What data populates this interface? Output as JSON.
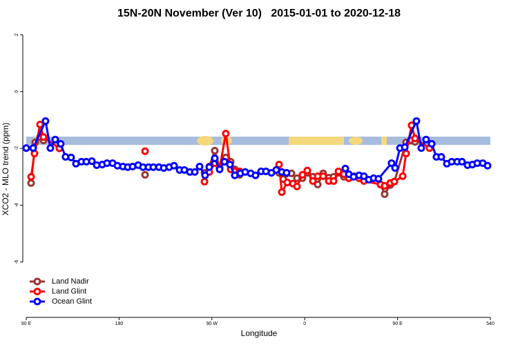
{
  "chart_data": {
    "type": "line",
    "title": "15N-20N November (Ver 10)   2015-01-01 to 2020-12-18",
    "xlabel": "Longitude",
    "ylabel": "XCO2 - MLO trend (ppm)",
    "xlim": [
      90,
      540
    ],
    "ylim": [
      -7.95,
      2.3
    ],
    "xticks": [
      {
        "value": 90,
        "label": "90 E"
      },
      180,
      {
        "value": 270,
        "label": "90 W"
      },
      {
        "value": 360,
        "label": "0"
      },
      {
        "value": 450,
        "label": "90 E"
      },
      540
    ],
    "yticks": [
      2,
      0,
      -2,
      -4,
      -6
    ],
    "legend": "bottom-left",
    "series": [
      {
        "name": "Land Nadir",
        "color": "#993333",
        "x": [
          94.7,
          98.7,
          103.4,
          106.7,
          205.2,
          262.8,
          267.5,
          272.8,
          277.5,
          283.5,
          288.2,
          292.2,
          296.9,
          335.1,
          339.1,
          347.1,
          352.5,
          357.8,
          362.5,
          367.9,
          372.6,
          377.9,
          383.3,
          388,
          393.3,
          398,
          402.7,
          408,
          412.7,
          433.5,
          437.5,
          442.9,
          446.9,
          458.3,
          463.6,
          467
        ],
        "values": [
          -3.22,
          -1.79,
          -1.6,
          -1.72,
          -2.93,
          -2.86,
          -2.64,
          -2.08,
          -2.69,
          -2.32,
          -2.47,
          -2.74,
          -2.93,
          -2.86,
          -3.08,
          -2.88,
          -3.05,
          -3.05,
          -2.86,
          -3.0,
          -3.27,
          -2.88,
          -3.03,
          -3.0,
          -2.86,
          -3.0,
          -3.05,
          -2.98,
          -3.03,
          -3.27,
          -3.61,
          -3.29,
          -3.17,
          -1.79,
          -1.72,
          -1.77
        ]
      },
      {
        "name": "Land Glint",
        "color": "#ff0000",
        "x": [
          94.7,
          98,
          103.4,
          106.7,
          122.1,
          205.2,
          262.8,
          267.5,
          272.8,
          277.5,
          283.5,
          288.2,
          292.2,
          296.9,
          335.1,
          337.8,
          343.1,
          348.5,
          352.5,
          357.8,
          362.5,
          367.9,
          372.6,
          377.9,
          383.3,
          388,
          392.7,
          398,
          402.7,
          407.4,
          412.7,
          417.4,
          433.5,
          437.5,
          442.9,
          446.9,
          455,
          458.3,
          463.6,
          467,
          481
        ],
        "values": [
          -3.0,
          -2.18,
          -1.16,
          -1.6,
          -2.0,
          -2.1,
          -3.17,
          -2.83,
          -2.52,
          -2.69,
          -1.48,
          -2.74,
          -2.81,
          -2.81,
          -2.57,
          -3.54,
          -3.2,
          -3.24,
          -3.34,
          -2.93,
          -2.78,
          -3.15,
          -2.98,
          -2.98,
          -3.15,
          -3.15,
          -2.81,
          -2.91,
          -3.05,
          -3.0,
          -3.05,
          -3.15,
          -3.27,
          -3.32,
          -3.22,
          -3.17,
          -2.98,
          -2.18,
          -1.19,
          -1.65,
          -1.99
        ]
      },
      {
        "name": "Ocean Glint",
        "color": "#0000ff",
        "x": [
          90,
          96.7,
          108.7,
          113.4,
          118.1,
          123.4,
          128.1,
          133.5,
          138.2,
          143.5,
          148.3,
          153.6,
          158.3,
          163.7,
          168.3,
          173.7,
          178.4,
          183.7,
          188.4,
          193.1,
          198.5,
          203.2,
          208.5,
          213.2,
          218.6,
          223.3,
          228.6,
          233.3,
          238.7,
          243.3,
          248.7,
          253.4,
          258.1,
          263.4,
          267.5,
          272.8,
          277.5,
          282.2,
          287.5,
          292.2,
          297.6,
          302.3,
          307.6,
          312.3,
          317.7,
          322.4,
          327.7,
          332.4,
          337.8,
          342.4,
          399.4,
          402.7,
          407.4,
          412.7,
          417.4,
          422.1,
          426.8,
          431.5,
          444.2,
          447.6,
          452.3,
          457,
          468.3,
          473,
          477.7,
          483.1,
          487.7,
          492.4,
          497.8,
          502.5,
          507.8,
          512.5,
          517.9,
          522.6,
          527.3,
          532.6,
          537.3
        ],
        "values": [
          -1.99,
          -1.99,
          -1.04,
          -1.99,
          -1.69,
          -1.84,
          -2.3,
          -2.32,
          -2.54,
          -2.47,
          -2.47,
          -2.45,
          -2.59,
          -2.57,
          -2.52,
          -2.52,
          -2.61,
          -2.64,
          -2.66,
          -2.64,
          -2.59,
          -2.66,
          -2.66,
          -2.66,
          -2.66,
          -2.69,
          -2.66,
          -2.61,
          -2.76,
          -2.76,
          -2.83,
          -2.83,
          -2.64,
          -2.95,
          -2.66,
          -2.35,
          -2.74,
          -2.47,
          -2.57,
          -2.95,
          -2.88,
          -2.83,
          -2.88,
          -2.95,
          -2.81,
          -2.81,
          -2.86,
          -2.76,
          -2.83,
          -2.86,
          -2.71,
          -2.91,
          -3.0,
          -2.95,
          -2.98,
          -3.1,
          -3.05,
          -3.07,
          -2.52,
          -2.69,
          -1.99,
          -1.96,
          -1.04,
          -1.99,
          -1.69,
          -1.84,
          -2.3,
          -2.3,
          -2.54,
          -2.47,
          -2.47,
          -2.47,
          -2.59,
          -2.57,
          -2.52,
          -2.52,
          -2.61
        ]
      }
    ]
  }
}
